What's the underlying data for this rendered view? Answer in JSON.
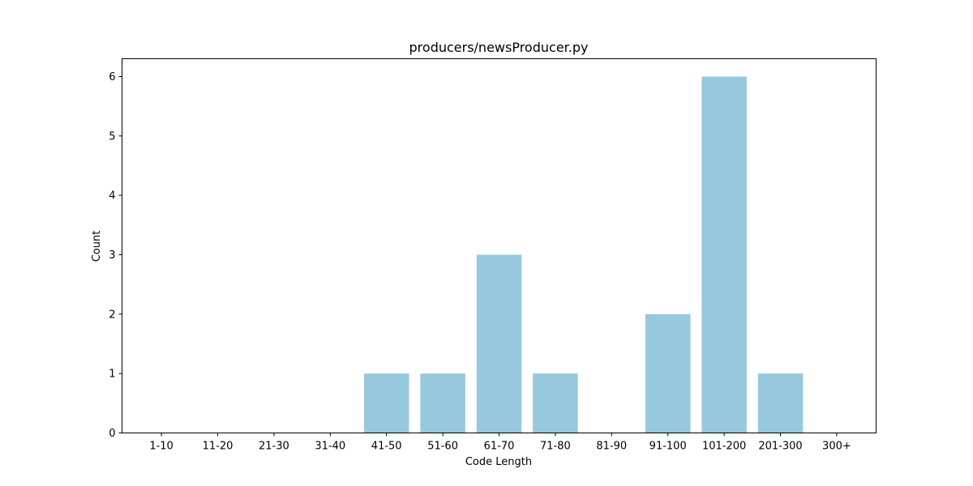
{
  "chart_data": {
    "type": "bar",
    "title": "producers/newsProducer.py",
    "xlabel": "Code Length",
    "ylabel": "Count",
    "categories": [
      "1-10",
      "11-20",
      "21-30",
      "31-40",
      "41-50",
      "51-60",
      "61-70",
      "71-80",
      "81-90",
      "91-100",
      "101-200",
      "201-300",
      "300+"
    ],
    "values": [
      0,
      0,
      0,
      0,
      1,
      1,
      3,
      1,
      0,
      2,
      6,
      1,
      0
    ],
    "ylim": [
      0,
      6.3
    ],
    "yticks": [
      0,
      1,
      2,
      3,
      4,
      5,
      6
    ],
    "bar_color": "#96c9dd",
    "grid": false,
    "legend": false
  }
}
